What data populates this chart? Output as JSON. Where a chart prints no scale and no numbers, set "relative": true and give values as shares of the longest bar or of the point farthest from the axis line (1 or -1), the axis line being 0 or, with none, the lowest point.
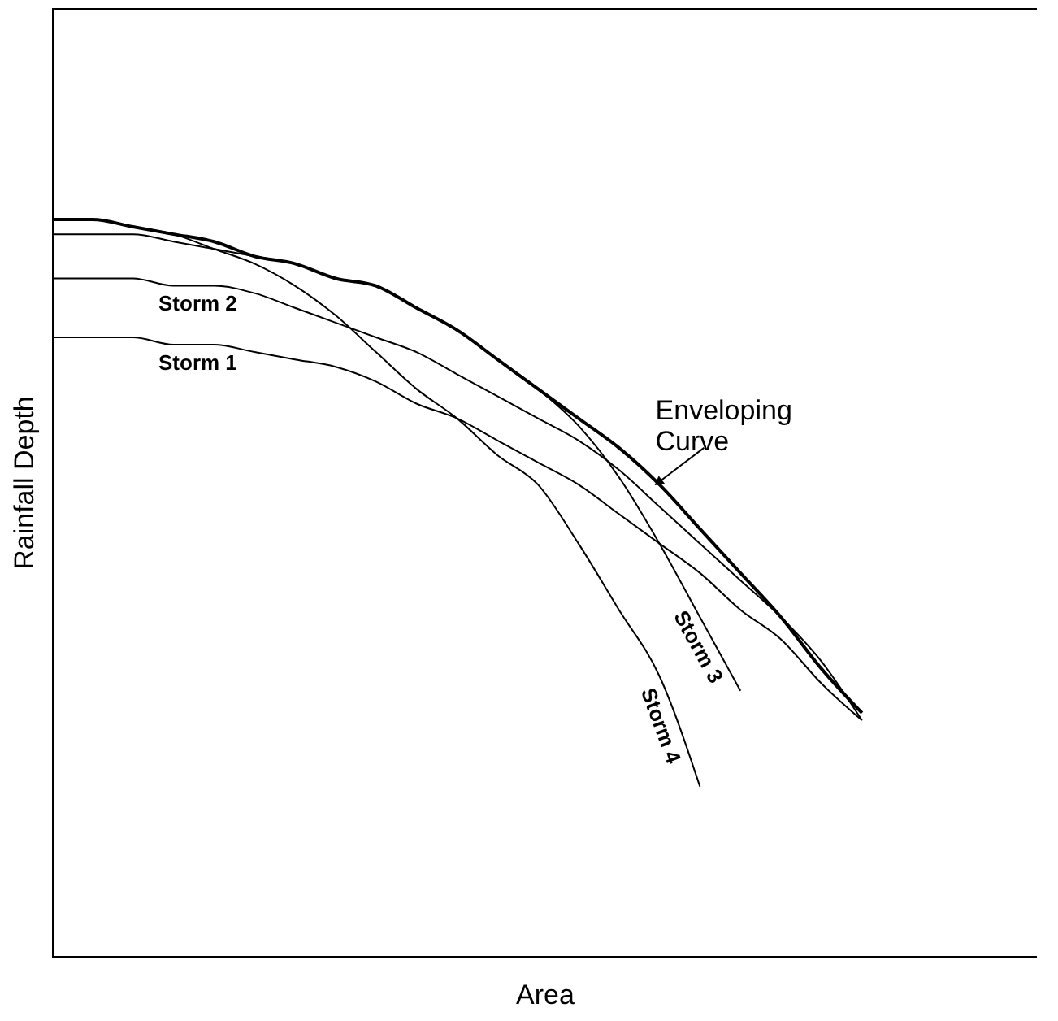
{
  "chart_data": {
    "type": "line",
    "relative": true,
    "xlabel": "Area",
    "ylabel": "Rainfall Depth",
    "grid": false,
    "marker": "none",
    "line_style": "solid",
    "categories": [
      null,
      null,
      null,
      null,
      null,
      null,
      null,
      null,
      null,
      null,
      null,
      null,
      null,
      null,
      null,
      null,
      null,
      null,
      null,
      null,
      null
    ],
    "series": [
      {
        "name": "Storm 1",
        "color": "#000000",
        "values": [
          0.84,
          0.84,
          0.84,
          0.83,
          0.83,
          0.82,
          0.81,
          0.8,
          0.78,
          0.75,
          0.73,
          0.7,
          0.67,
          0.64,
          0.6,
          0.56,
          0.52,
          0.47,
          0.43,
          0.37,
          0.32
        ]
      },
      {
        "name": "Storm 2",
        "color": "#000000",
        "values": [
          0.92,
          0.92,
          0.92,
          0.91,
          0.91,
          0.9,
          0.88,
          0.86,
          0.84,
          0.82,
          0.79,
          0.76,
          0.73,
          0.7,
          0.66,
          0.61,
          0.56,
          0.51,
          0.46,
          0.4,
          0.32
        ]
      },
      {
        "name": "Storm 3",
        "color": "#000000",
        "values": [
          0.98,
          0.98,
          0.98,
          0.97,
          0.96,
          0.95,
          0.94,
          0.92,
          0.91,
          0.88,
          0.85,
          0.81,
          0.77,
          0.72,
          0.65,
          0.56,
          0.46,
          0.36,
          null,
          null,
          null
        ]
      },
      {
        "name": "Storm 4",
        "color": "#000000",
        "values": [
          1.0,
          1.0,
          0.99,
          0.98,
          0.96,
          0.94,
          0.91,
          0.87,
          0.82,
          0.77,
          0.73,
          0.68,
          0.64,
          0.56,
          0.47,
          0.38,
          0.23,
          null,
          null,
          null,
          null
        ]
      },
      {
        "name": "Enveloping Curve",
        "color": "#000000",
        "values": [
          1.0,
          1.0,
          0.99,
          0.98,
          0.97,
          0.95,
          0.94,
          0.92,
          0.91,
          0.88,
          0.85,
          0.81,
          0.77,
          0.73,
          0.69,
          0.64,
          0.58,
          0.52,
          0.46,
          0.39,
          0.33
        ]
      }
    ]
  }
}
